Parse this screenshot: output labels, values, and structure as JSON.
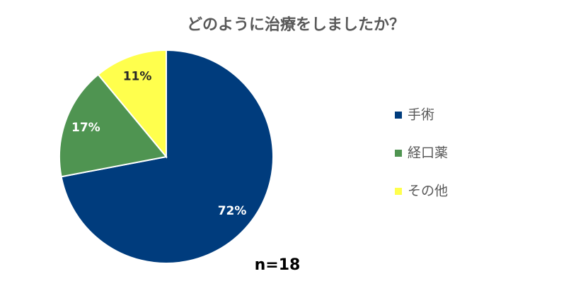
{
  "chart_data": {
    "type": "pie",
    "title": "どのように治療をしましたか？",
    "categories": [
      "手術",
      "経口薬",
      "その他"
    ],
    "values": [
      72,
      17,
      11
    ],
    "value_labels": [
      "72%",
      "17%",
      "11%"
    ],
    "colors": [
      "#003c7d",
      "#4f9451",
      "#ffff4d"
    ],
    "annotation": "n=18",
    "legend": "right"
  }
}
